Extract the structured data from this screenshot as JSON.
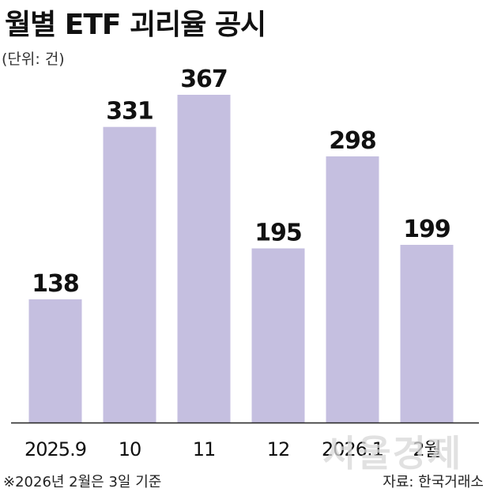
{
  "header": {
    "title": "월별 ETF 괴리율 공시",
    "unit": "(단위: 건)"
  },
  "chart_data": {
    "type": "bar",
    "categories": [
      "2025.9",
      "10",
      "11",
      "12",
      "2026.1",
      "2월"
    ],
    "values": [
      138,
      331,
      367,
      195,
      298,
      199
    ],
    "title": "월별 ETF 괴리율 공시",
    "xlabel": "",
    "ylabel": "",
    "ylim": [
      0,
      367
    ],
    "grid": false,
    "bar_color": "#c5bfe0"
  },
  "footer": {
    "note": "※2026년 2월은 3일 기준",
    "source": "자료: 한국거래소"
  },
  "watermark": "서울경제"
}
